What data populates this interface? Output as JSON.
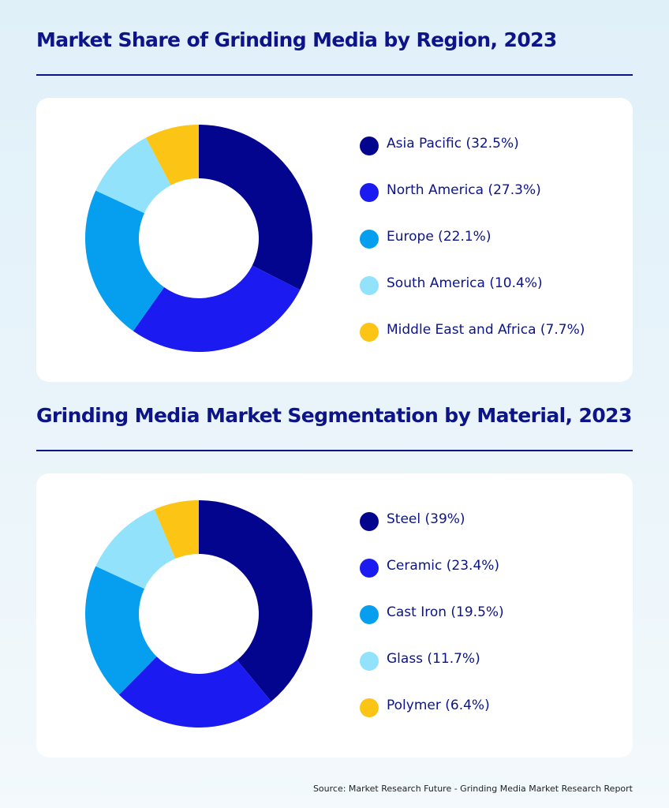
{
  "chart_data": [
    {
      "type": "pie",
      "title": "Market Share of Grinding Media by Region, 2023",
      "categories": [
        "Asia Pacific",
        "North America",
        "Europe",
        "South America",
        "Middle East and Africa"
      ],
      "values": [
        32.5,
        27.3,
        22.1,
        10.4,
        7.7
      ],
      "legend_labels": [
        "Asia Pacific (32.5%)",
        "North America (27.3%)",
        "Europe (22.1%)",
        "South America (10.4%)",
        "Middle East and Africa (7.7%)"
      ],
      "colors": [
        "#04058f",
        "#1b1af0",
        "#069ff0",
        "#92e2fc",
        "#fcc414"
      ],
      "legend_position": "right"
    },
    {
      "type": "pie",
      "title": "Grinding Media Market Segmentation by Material, 2023",
      "categories": [
        "Steel",
        "Ceramic",
        "Cast Iron",
        "Glass",
        "Polymer"
      ],
      "values": [
        39,
        23.4,
        19.5,
        11.7,
        6.4
      ],
      "legend_labels": [
        "Steel (39%)",
        "Ceramic (23.4%)",
        "Cast Iron (19.5%)",
        "Glass (11.7%)",
        "Polymer (6.4%)"
      ],
      "colors": [
        "#04058f",
        "#1b1af0",
        "#069ff0",
        "#92e2fc",
        "#fcc414"
      ],
      "legend_position": "right"
    }
  ],
  "source": "Source: Market Research Future - Grinding Media Market Research Report"
}
